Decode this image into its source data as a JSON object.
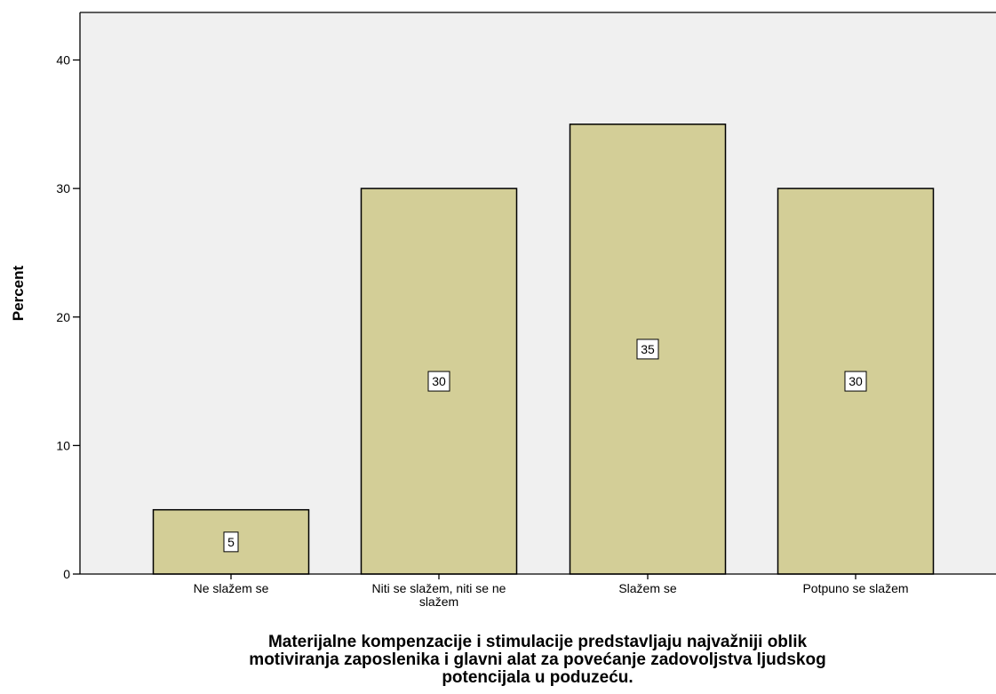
{
  "chart_data": {
    "type": "bar",
    "categories": [
      "Ne slažem se",
      "Niti se slažem, niti se ne slažem",
      "Slažem se",
      "Potpuno se slažem"
    ],
    "category_label_lines": [
      [
        "Ne slažem se"
      ],
      [
        "Niti se slažem, niti se ne",
        "slažem"
      ],
      [
        "Slažem se"
      ],
      [
        "Potpuno se slažem"
      ]
    ],
    "values": [
      5,
      30,
      35,
      30
    ],
    "data_labels": [
      "5",
      "30",
      "35",
      "30"
    ],
    "ylabel": "Percent",
    "xlabel_lines": [
      "Materijalne kompenzacije i stimulacije predstavljaju najvažniji oblik",
      "motiviranja zaposlenika i glavni alat za povećanje zadovoljstva ljudskog",
      "potencijala u poduzeću."
    ],
    "ylim": [
      0,
      43.7
    ],
    "yticks": [
      0,
      10,
      20,
      30,
      40
    ],
    "ytick_labels": [
      "0",
      "10",
      "20",
      "30",
      "40"
    ],
    "grid": false,
    "legend": "none",
    "colors": {
      "plot_background": "#f0f0f0",
      "bar_fill": "#d3ce97",
      "bar_stroke": "#000000",
      "axis": "#000000"
    }
  }
}
